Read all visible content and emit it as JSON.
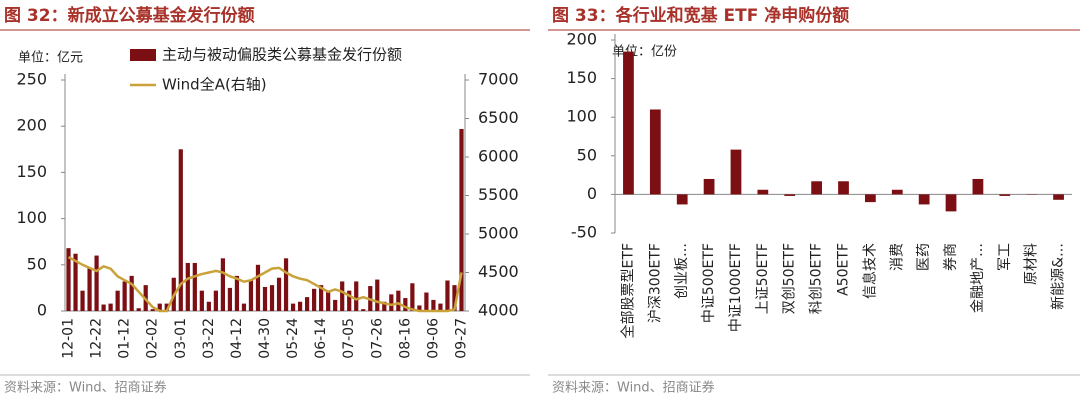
{
  "chart_data": [
    {
      "type": "bar",
      "title": "图 32：新成立公募基金发行份额",
      "unit": "单位：亿元",
      "source": "资料来源：Wind、招商证券",
      "categories": [
        "12-01",
        null,
        null,
        null,
        "12-22",
        null,
        null,
        null,
        "01-12",
        null,
        null,
        null,
        "02-02",
        null,
        null,
        null,
        "03-01",
        null,
        null,
        null,
        "03-22",
        null,
        null,
        null,
        "04-12",
        null,
        null,
        null,
        "04-30",
        null,
        null,
        null,
        "05-24",
        null,
        null,
        null,
        "06-14",
        null,
        null,
        null,
        "07-05",
        null,
        null,
        null,
        "07-26",
        null,
        null,
        null,
        "08-16",
        null,
        null,
        null,
        "09-06",
        null,
        null,
        null,
        "09-27"
      ],
      "series": [
        {
          "name": "主动与被动偏股类公募基金发行份额",
          "type": "bar",
          "color": "#7b0f14",
          "values": [
            68,
            62,
            22,
            47,
            60,
            7,
            8,
            22,
            32,
            38,
            3,
            28,
            2,
            8,
            8,
            36,
            175,
            52,
            52,
            22,
            10,
            22,
            57,
            25,
            38,
            8,
            34,
            50,
            26,
            28,
            36,
            57,
            8,
            10,
            15,
            24,
            28,
            22,
            12,
            32,
            22,
            32,
            2,
            27,
            34,
            10,
            18,
            22,
            14,
            30,
            6,
            20,
            12,
            8,
            33,
            28,
            197
          ]
        },
        {
          "name": "Wind全A(右轴)",
          "type": "line",
          "axis": "y2",
          "color": "#c9a23a",
          "values": [
            4700,
            4650,
            4600,
            4560,
            4520,
            4580,
            4550,
            4450,
            4400,
            4350,
            4250,
            4150,
            4050,
            4000,
            4000,
            4200,
            4350,
            4420,
            4450,
            4480,
            4500,
            4520,
            4500,
            4450,
            4420,
            4380,
            4400,
            4450,
            4500,
            4550,
            4560,
            4500,
            4450,
            4420,
            4400,
            4350,
            4300,
            4250,
            4280,
            4250,
            4200,
            4150,
            4180,
            4150,
            4120,
            4100,
            4080,
            4100,
            4050,
            4020,
            4000,
            4000,
            4000,
            4000,
            4000,
            4020,
            4500
          ]
        }
      ],
      "ylim": [
        0,
        250
      ],
      "yticks": [
        0,
        50,
        100,
        150,
        200,
        250
      ],
      "y2lim": [
        4000,
        7000
      ],
      "y2ticks": [
        4000,
        4500,
        5000,
        5500,
        6000,
        6500,
        7000
      ]
    },
    {
      "type": "bar",
      "title": "图 33：各行业和宽基 ETF 净申购份额",
      "unit": "单位：亿份",
      "source": "资料来源：Wind、招商证券",
      "categories": [
        "全部股票型ETF",
        "沪深300ETF",
        "创业板…",
        "中证500ETF",
        "中证1000ETF",
        "上证50ETF",
        "双创50ETF",
        "科创50ETF",
        "A50ETF",
        "信息技术",
        "消费",
        "医药",
        "券商",
        "金融地产…",
        "军工",
        "原材料",
        "新能源&…"
      ],
      "series": [
        {
          "type": "bar",
          "color": "#7b0f14",
          "values": [
            185,
            110,
            -13,
            20,
            58,
            6,
            -2,
            17,
            17,
            -10,
            6,
            -13,
            -22,
            20,
            -2,
            0.5,
            -7
          ]
        }
      ],
      "ylim": [
        -50,
        200
      ],
      "yticks": [
        -50,
        0,
        50,
        100,
        150,
        200
      ]
    }
  ]
}
